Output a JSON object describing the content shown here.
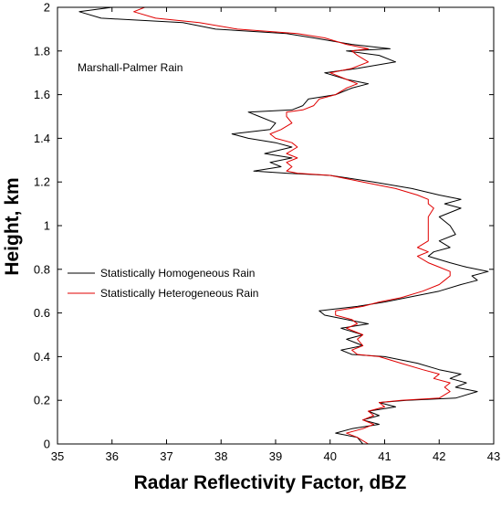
{
  "chart_data": {
    "type": "line",
    "title": "",
    "xlabel": "Radar Reflectivity Factor, dBZ",
    "ylabel": "Height, km",
    "xlim": [
      35,
      43
    ],
    "ylim": [
      0,
      2
    ],
    "xticks": [
      "35",
      "36",
      "37",
      "38",
      "39",
      "40",
      "41",
      "42",
      "43"
    ],
    "yticks": [
      "0",
      "0.2",
      "0.4",
      "0.6",
      "0.8",
      "1",
      "1.2",
      "1.4",
      "1.6",
      "1.8",
      "2"
    ],
    "annotation": "Marshall-Palmer Rain",
    "grid": false,
    "legend_position": "middle-left",
    "series": [
      {
        "name": "Statistically Homogeneous Rain",
        "color": "#000000",
        "points": [
          [
            40.6,
            0.0
          ],
          [
            40.5,
            0.03
          ],
          [
            40.1,
            0.05
          ],
          [
            40.4,
            0.07
          ],
          [
            40.9,
            0.09
          ],
          [
            40.6,
            0.11
          ],
          [
            40.9,
            0.13
          ],
          [
            40.7,
            0.15
          ],
          [
            41.2,
            0.17
          ],
          [
            40.9,
            0.19
          ],
          [
            41.4,
            0.2
          ],
          [
            42.3,
            0.21
          ],
          [
            42.7,
            0.24
          ],
          [
            42.3,
            0.26
          ],
          [
            42.5,
            0.28
          ],
          [
            42.2,
            0.3
          ],
          [
            42.4,
            0.32
          ],
          [
            42.0,
            0.34
          ],
          [
            41.6,
            0.37
          ],
          [
            41.0,
            0.4
          ],
          [
            40.4,
            0.41
          ],
          [
            40.2,
            0.43
          ],
          [
            40.6,
            0.45
          ],
          [
            40.3,
            0.48
          ],
          [
            40.6,
            0.5
          ],
          [
            40.2,
            0.53
          ],
          [
            40.7,
            0.55
          ],
          [
            40.3,
            0.57
          ],
          [
            39.9,
            0.59
          ],
          [
            39.8,
            0.61
          ],
          [
            40.5,
            0.63
          ],
          [
            41.0,
            0.65
          ],
          [
            41.4,
            0.67
          ],
          [
            42.0,
            0.7
          ],
          [
            42.4,
            0.73
          ],
          [
            42.7,
            0.75
          ],
          [
            42.6,
            0.77
          ],
          [
            42.9,
            0.79
          ],
          [
            42.5,
            0.81
          ],
          [
            42.2,
            0.83
          ],
          [
            41.8,
            0.86
          ],
          [
            41.9,
            0.88
          ],
          [
            42.2,
            0.9
          ],
          [
            42.0,
            0.93
          ],
          [
            42.3,
            0.96
          ],
          [
            42.2,
            1.0
          ],
          [
            42.0,
            1.04
          ],
          [
            42.4,
            1.08
          ],
          [
            42.1,
            1.1
          ],
          [
            42.4,
            1.12
          ],
          [
            42.0,
            1.14
          ],
          [
            41.5,
            1.17
          ],
          [
            40.8,
            1.2
          ],
          [
            40.0,
            1.23
          ],
          [
            39.2,
            1.24
          ],
          [
            38.6,
            1.25
          ],
          [
            39.1,
            1.27
          ],
          [
            38.9,
            1.29
          ],
          [
            39.3,
            1.31
          ],
          [
            38.8,
            1.33
          ],
          [
            39.3,
            1.36
          ],
          [
            39.0,
            1.38
          ],
          [
            38.5,
            1.4
          ],
          [
            38.2,
            1.42
          ],
          [
            38.9,
            1.44
          ],
          [
            39.0,
            1.47
          ],
          [
            38.7,
            1.5
          ],
          [
            38.5,
            1.52
          ],
          [
            39.3,
            1.53
          ],
          [
            39.5,
            1.55
          ],
          [
            39.6,
            1.58
          ],
          [
            40.1,
            1.6
          ],
          [
            40.4,
            1.63
          ],
          [
            40.7,
            1.65
          ],
          [
            40.3,
            1.67
          ],
          [
            39.9,
            1.7
          ],
          [
            40.5,
            1.72
          ],
          [
            41.2,
            1.75
          ],
          [
            40.9,
            1.78
          ],
          [
            40.3,
            1.8
          ],
          [
            41.1,
            1.81
          ],
          [
            40.4,
            1.83
          ],
          [
            39.7,
            1.86
          ],
          [
            39.2,
            1.88
          ],
          [
            37.9,
            1.9
          ],
          [
            37.3,
            1.93
          ],
          [
            35.8,
            1.95
          ],
          [
            35.4,
            1.98
          ],
          [
            36.0,
            2.0
          ]
        ]
      },
      {
        "name": "Statistically Heterogeneous Rain",
        "color": "#e00000",
        "points": [
          [
            40.7,
            0.0
          ],
          [
            40.5,
            0.03
          ],
          [
            40.3,
            0.05
          ],
          [
            40.6,
            0.07
          ],
          [
            40.8,
            0.09
          ],
          [
            40.6,
            0.11
          ],
          [
            40.8,
            0.13
          ],
          [
            40.7,
            0.15
          ],
          [
            41.0,
            0.17
          ],
          [
            40.9,
            0.19
          ],
          [
            41.3,
            0.2
          ],
          [
            42.0,
            0.21
          ],
          [
            42.2,
            0.24
          ],
          [
            42.1,
            0.26
          ],
          [
            42.2,
            0.28
          ],
          [
            41.9,
            0.3
          ],
          [
            42.0,
            0.32
          ],
          [
            41.7,
            0.34
          ],
          [
            41.3,
            0.37
          ],
          [
            40.9,
            0.4
          ],
          [
            40.5,
            0.41
          ],
          [
            40.4,
            0.43
          ],
          [
            40.6,
            0.45
          ],
          [
            40.5,
            0.48
          ],
          [
            40.6,
            0.5
          ],
          [
            40.3,
            0.53
          ],
          [
            40.5,
            0.55
          ],
          [
            40.4,
            0.57
          ],
          [
            40.1,
            0.59
          ],
          [
            40.1,
            0.61
          ],
          [
            40.6,
            0.63
          ],
          [
            40.9,
            0.65
          ],
          [
            41.3,
            0.67
          ],
          [
            41.7,
            0.7
          ],
          [
            42.0,
            0.73
          ],
          [
            42.1,
            0.75
          ],
          [
            42.2,
            0.77
          ],
          [
            42.2,
            0.79
          ],
          [
            42.0,
            0.81
          ],
          [
            41.8,
            0.83
          ],
          [
            41.6,
            0.86
          ],
          [
            41.8,
            0.88
          ],
          [
            41.6,
            0.9
          ],
          [
            41.8,
            0.93
          ],
          [
            41.8,
            0.96
          ],
          [
            41.8,
            1.0
          ],
          [
            41.8,
            1.04
          ],
          [
            41.9,
            1.08
          ],
          [
            41.8,
            1.1
          ],
          [
            41.8,
            1.12
          ],
          [
            41.6,
            1.14
          ],
          [
            41.2,
            1.17
          ],
          [
            40.6,
            1.2
          ],
          [
            40.0,
            1.23
          ],
          [
            39.4,
            1.24
          ],
          [
            39.2,
            1.25
          ],
          [
            39.3,
            1.27
          ],
          [
            39.2,
            1.29
          ],
          [
            39.4,
            1.31
          ],
          [
            39.2,
            1.33
          ],
          [
            39.4,
            1.36
          ],
          [
            39.3,
            1.38
          ],
          [
            39.0,
            1.4
          ],
          [
            38.9,
            1.42
          ],
          [
            39.1,
            1.44
          ],
          [
            39.3,
            1.47
          ],
          [
            39.2,
            1.5
          ],
          [
            39.2,
            1.52
          ],
          [
            39.5,
            1.53
          ],
          [
            39.7,
            1.55
          ],
          [
            39.8,
            1.58
          ],
          [
            40.1,
            1.6
          ],
          [
            40.3,
            1.63
          ],
          [
            40.5,
            1.65
          ],
          [
            40.3,
            1.67
          ],
          [
            40.0,
            1.7
          ],
          [
            40.4,
            1.72
          ],
          [
            40.7,
            1.75
          ],
          [
            40.5,
            1.78
          ],
          [
            40.4,
            1.8
          ],
          [
            40.7,
            1.81
          ],
          [
            40.3,
            1.83
          ],
          [
            39.9,
            1.86
          ],
          [
            39.4,
            1.88
          ],
          [
            38.3,
            1.9
          ],
          [
            37.6,
            1.93
          ],
          [
            36.8,
            1.95
          ],
          [
            36.4,
            1.98
          ],
          [
            36.6,
            2.0
          ]
        ]
      }
    ]
  }
}
